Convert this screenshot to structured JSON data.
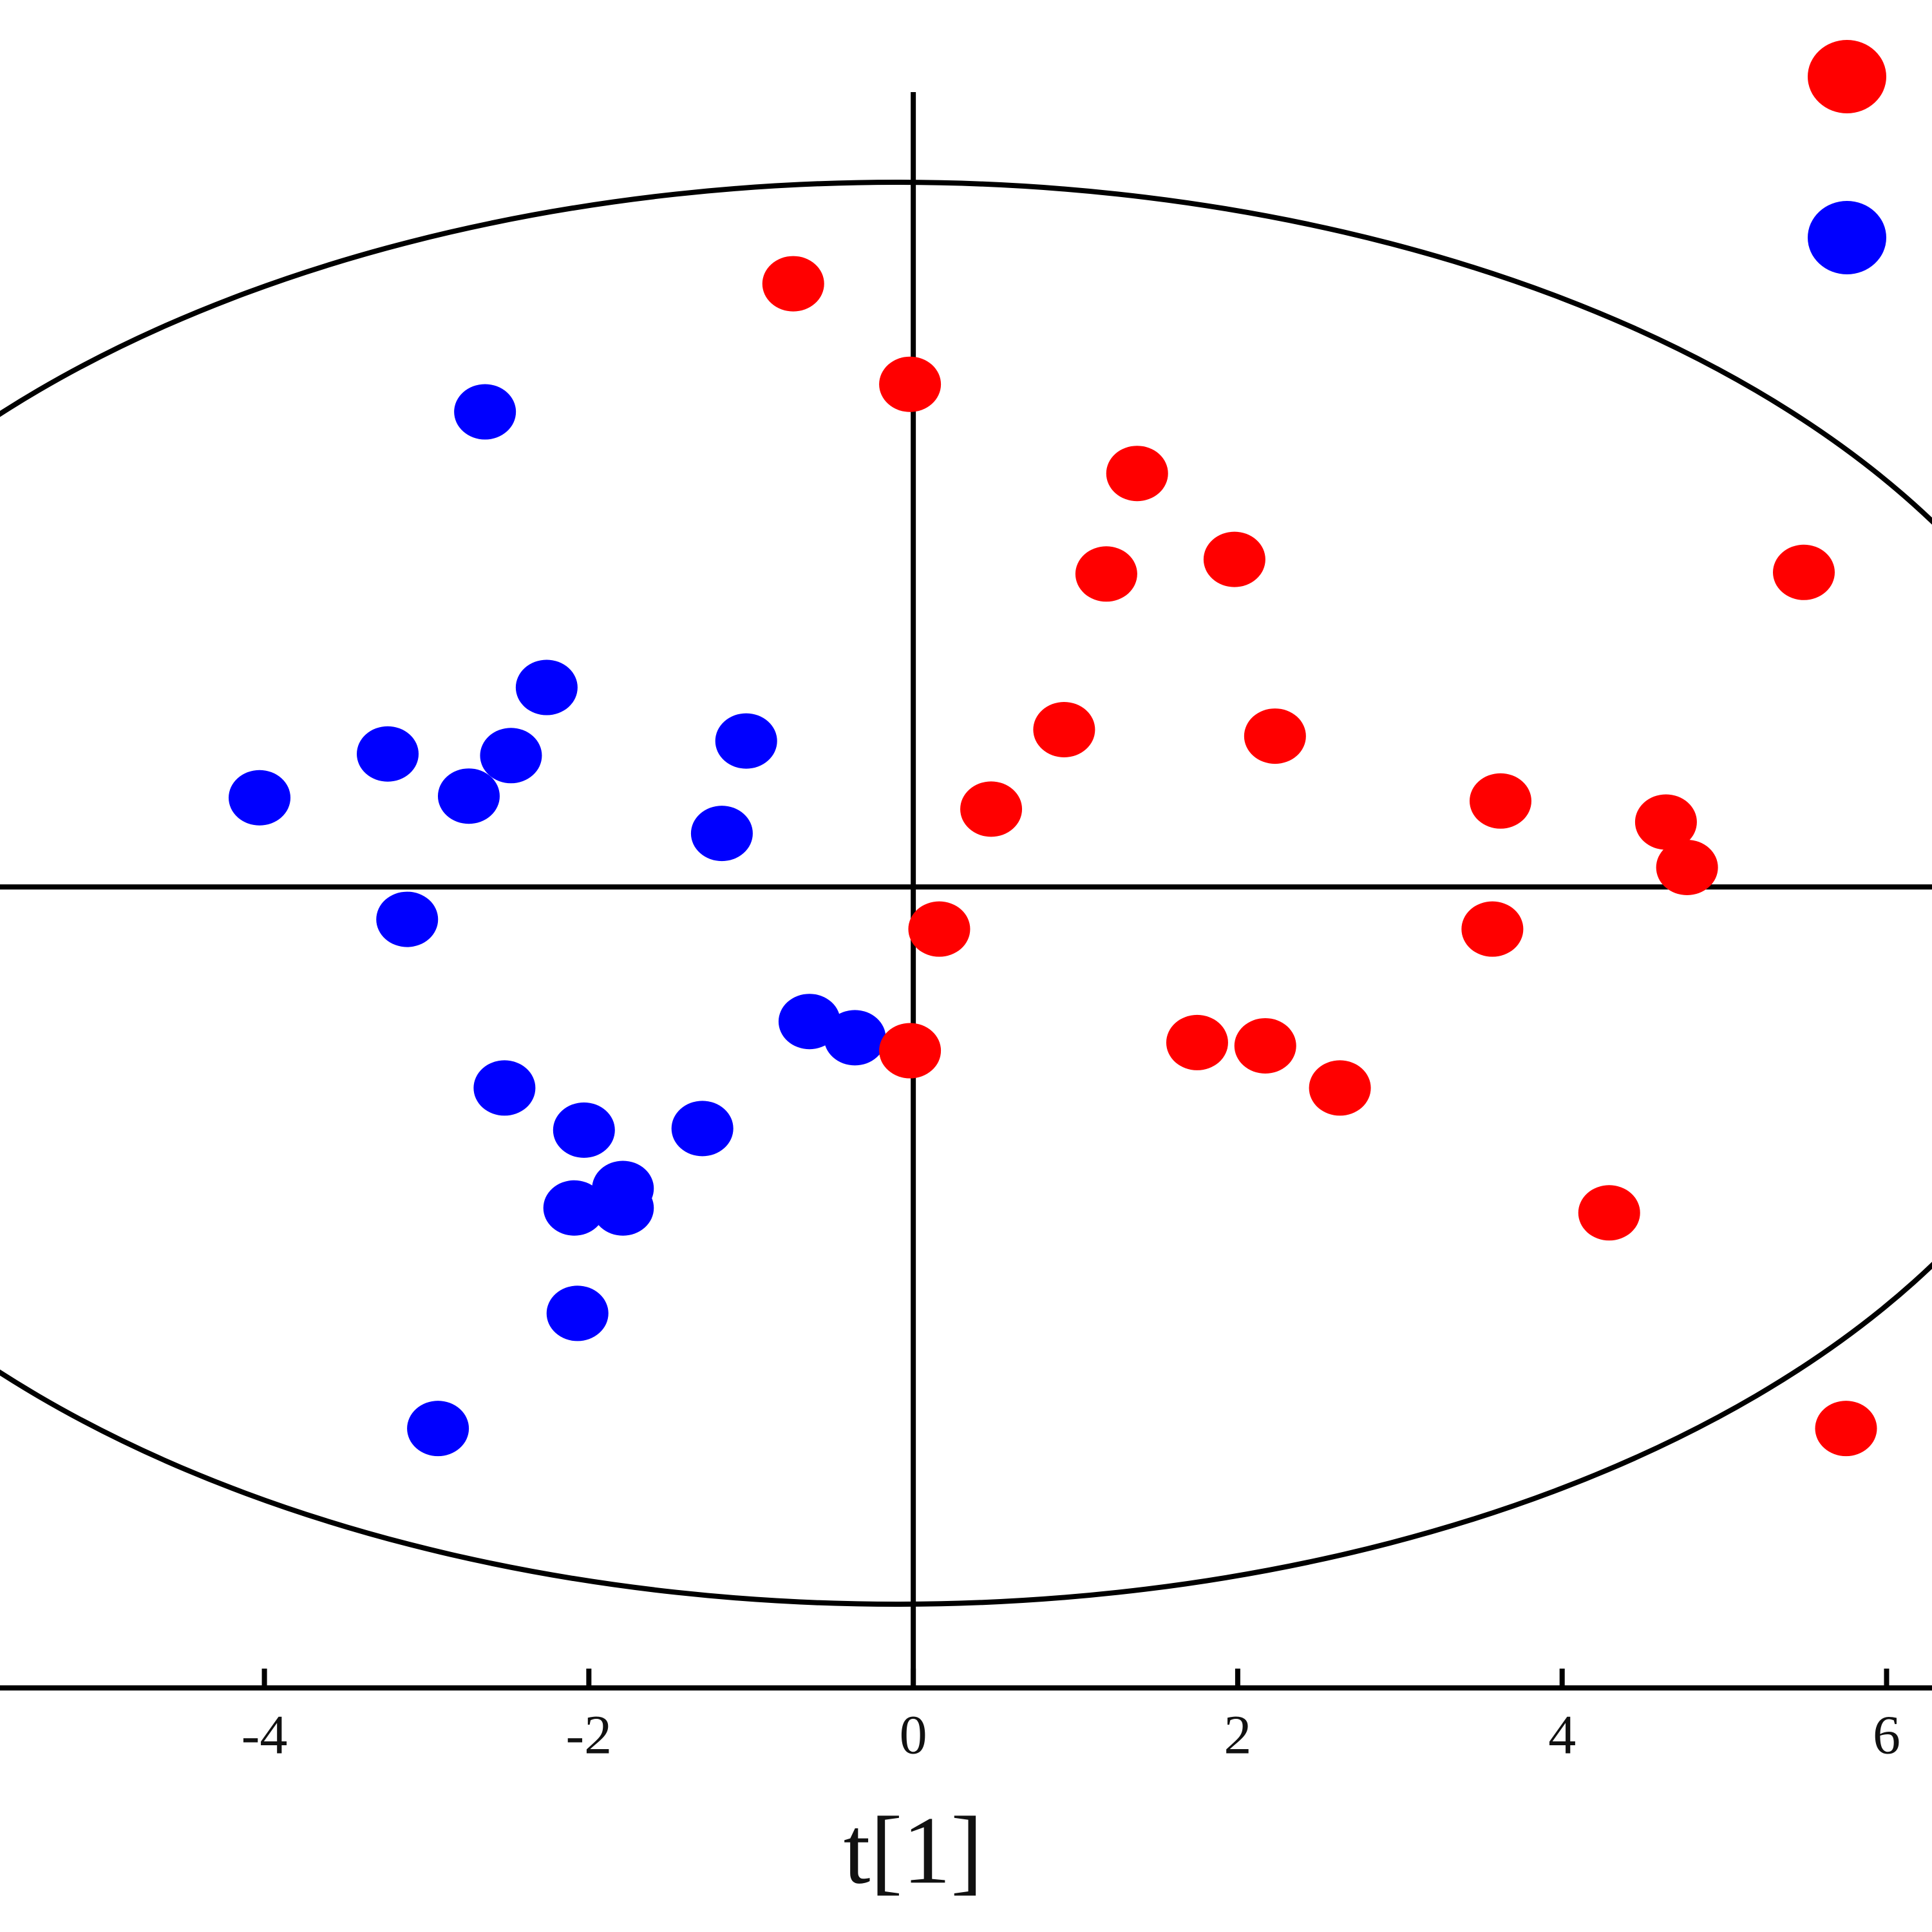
{
  "chart_data": {
    "type": "scatter",
    "x_label": "t[1]",
    "xlim": [
      -5.63,
      6.28
    ],
    "ylim": [
      -4.94,
      5.47
    ],
    "xticks": [
      -4,
      -2,
      0,
      2,
      4,
      6
    ],
    "series": [
      {
        "color": "#0000ff",
        "x": [
          -2.64,
          -2.26,
          -3.24,
          -2.48,
          -1.03,
          -4.03,
          -2.74,
          -1.18,
          -3.12,
          -0.64,
          -0.36,
          -2.52,
          -2.03,
          -1.3,
          -1.79,
          -2.09,
          -1.79,
          -2.07,
          -2.93
        ],
        "values": [
          2.93,
          1.23,
          0.82,
          0.81,
          0.9,
          0.55,
          0.56,
          0.33,
          -0.2,
          -0.83,
          -0.93,
          -1.24,
          -1.5,
          -1.49,
          -1.86,
          -1.98,
          -1.98,
          -2.63,
          -3.34
        ]
      },
      {
        "color": "#ff0000",
        "x": [
          -0.74,
          -0.02,
          1.38,
          1.19,
          1.98,
          5.49,
          0.93,
          2.23,
          0.48,
          3.62,
          4.64,
          4.77,
          0.16,
          3.57,
          -0.02,
          1.75,
          2.17,
          2.63,
          4.29,
          5.75
        ],
        "values": [
          3.72,
          3.1,
          2.55,
          1.93,
          2.02,
          1.94,
          0.97,
          0.93,
          0.48,
          0.53,
          0.4,
          0.12,
          -0.26,
          -0.26,
          -1.01,
          -0.96,
          -0.98,
          -1.24,
          -2.01,
          -3.34
        ]
      }
    ]
  }
}
